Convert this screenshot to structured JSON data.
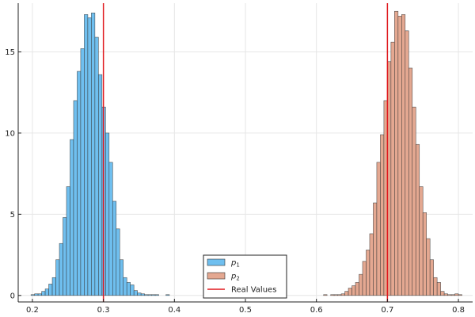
{
  "chart_data": {
    "type": "histogram",
    "xlim": [
      0.18,
      0.82
    ],
    "ylim": [
      -0.4,
      18.0
    ],
    "grid": true,
    "legend_placement": "bottom-center",
    "x_ticks": [
      {
        "value": 0.2,
        "label": "0.2"
      },
      {
        "value": 0.3,
        "label": "0.3"
      },
      {
        "value": 0.4,
        "label": "0.4"
      },
      {
        "value": 0.5,
        "label": "0.5"
      },
      {
        "value": 0.6,
        "label": "0.6"
      },
      {
        "value": 0.7,
        "label": "0.7"
      },
      {
        "value": 0.8,
        "label": "0.8"
      }
    ],
    "y_ticks": [
      {
        "value": 0,
        "label": "0"
      },
      {
        "value": 5,
        "label": "5"
      },
      {
        "value": 10,
        "label": "10"
      },
      {
        "value": 15,
        "label": "15"
      }
    ],
    "series": [
      {
        "name": "p",
        "name_sub": "1",
        "color": "#6fbfef",
        "bin_start": 0.198,
        "bin_width": 0.005,
        "values": [
          0.05,
          0.1,
          0.1,
          0.25,
          0.4,
          0.7,
          1.1,
          2.2,
          3.2,
          4.8,
          6.7,
          9.6,
          12.0,
          13.8,
          15.2,
          17.3,
          17.1,
          17.4,
          15.9,
          13.6,
          11.6,
          10.0,
          8.2,
          5.8,
          4.1,
          2.2,
          1.1,
          0.8,
          0.65,
          0.3,
          0.15,
          0.1,
          0.05,
          0.05,
          0.05,
          0.05,
          0.0,
          0.0,
          0.05
        ]
      },
      {
        "name": "p",
        "name_sub": "2",
        "color": "#e4a891",
        "bin_start": 0.61,
        "bin_width": 0.005,
        "values": [
          0.05,
          0.0,
          0.05,
          0.05,
          0.05,
          0.1,
          0.25,
          0.45,
          0.6,
          0.8,
          1.3,
          2.1,
          2.8,
          3.8,
          5.7,
          8.2,
          9.9,
          12.0,
          14.4,
          15.6,
          17.5,
          17.2,
          17.3,
          16.3,
          14.0,
          11.6,
          9.3,
          6.7,
          5.1,
          3.5,
          2.2,
          1.1,
          0.8,
          0.25,
          0.1,
          0.05,
          0.05,
          0.1,
          0.05
        ]
      }
    ],
    "reference_lines": [
      {
        "name": "Real Values",
        "color": "#e0191e",
        "x_values": [
          0.3,
          0.7
        ]
      }
    ]
  }
}
